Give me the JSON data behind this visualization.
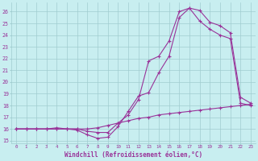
{
  "background_color": "#c8eef0",
  "grid_color": "#a0ccd0",
  "line_color": "#993399",
  "xlabel": "Windchill (Refroidissement éolien,°C)",
  "xlabel_color": "#993399",
  "xtick_color": "#993399",
  "ytick_color": "#993399",
  "xlim": [
    -0.5,
    23.5
  ],
  "ylim": [
    14.8,
    26.8
  ],
  "yticks": [
    15,
    16,
    17,
    18,
    19,
    20,
    21,
    22,
    23,
    24,
    25,
    26
  ],
  "xticks": [
    0,
    1,
    2,
    3,
    4,
    5,
    6,
    7,
    8,
    9,
    10,
    11,
    12,
    13,
    14,
    15,
    16,
    17,
    18,
    19,
    20,
    21,
    22,
    23
  ],
  "curve1_x": [
    0,
    1,
    2,
    3,
    4,
    5,
    6,
    7,
    8,
    9,
    10,
    11,
    12,
    13,
    14,
    15,
    16,
    17,
    18,
    19,
    20,
    21,
    22,
    23
  ],
  "curve1_y": [
    16.0,
    16.0,
    16.0,
    16.0,
    16.1,
    16.0,
    15.9,
    15.5,
    15.2,
    15.3,
    16.2,
    17.5,
    18.8,
    19.1,
    20.8,
    22.2,
    25.5,
    26.3,
    25.2,
    24.5,
    24.0,
    23.7,
    18.2,
    18.0
  ],
  "curve2_x": [
    0,
    1,
    2,
    3,
    4,
    5,
    6,
    7,
    8,
    9,
    10,
    11,
    12,
    13,
    14,
    15,
    16,
    17,
    18,
    19,
    20,
    21,
    22,
    23
  ],
  "curve2_y": [
    16.0,
    16.0,
    16.0,
    16.0,
    16.0,
    16.0,
    16.0,
    15.8,
    15.7,
    15.7,
    16.5,
    17.2,
    18.5,
    21.8,
    22.2,
    23.5,
    26.0,
    26.3,
    26.1,
    25.1,
    24.8,
    24.2,
    18.7,
    18.2
  ],
  "curve3_x": [
    0,
    1,
    2,
    3,
    4,
    5,
    6,
    7,
    8,
    9,
    10,
    11,
    12,
    13,
    14,
    15,
    16,
    17,
    18,
    19,
    20,
    21,
    22,
    23
  ],
  "curve3_y": [
    16.0,
    16.0,
    16.0,
    16.0,
    16.0,
    16.0,
    16.0,
    16.0,
    16.1,
    16.3,
    16.5,
    16.7,
    16.9,
    17.0,
    17.2,
    17.3,
    17.4,
    17.5,
    17.6,
    17.7,
    17.8,
    17.9,
    18.0,
    18.1
  ]
}
